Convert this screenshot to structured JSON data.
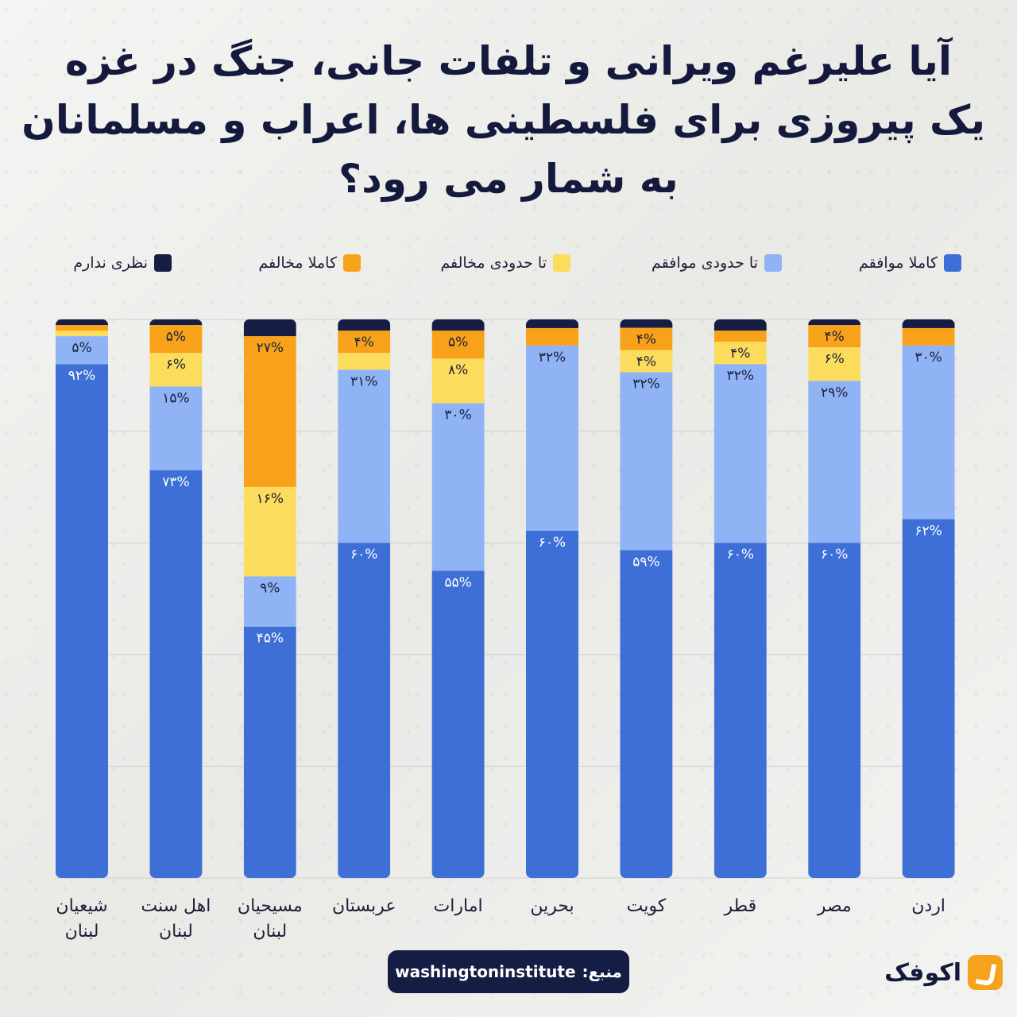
{
  "title_lines": [
    "آیا علیرغم ویرانی و تلفات جانی، جنگ در غزه",
    "یک پیروزی برای فلسطینی ها، اعراب و مسلمانان",
    "به شمار می رود؟"
  ],
  "source": {
    "label": "منبع:",
    "value": "washingtoninstitute"
  },
  "logo": {
    "text": "اکوفک",
    "icon": "akofak-logo-icon"
  },
  "colors": {
    "strongly_agree": "#3d6fd6",
    "somewhat_agree": "#8fb3f5",
    "somewhat_disagree": "#fcdc5c",
    "strongly_disagree": "#f7a21a",
    "no_opinion": "#161d45"
  },
  "chart_data": {
    "type": "bar",
    "stacked": true,
    "orientation": "vertical",
    "ylim": [
      0,
      100
    ],
    "grid": true,
    "legend_position": "top",
    "categories": [
      [
        "شیعیان",
        "لبنان"
      ],
      [
        "اهل سنت",
        "لبنان"
      ],
      [
        "مسیحیان",
        "لبنان"
      ],
      [
        "عربستان"
      ],
      [
        "امارات"
      ],
      [
        "بحرین"
      ],
      [
        "کویت"
      ],
      [
        "قطر"
      ],
      [
        "مصر"
      ],
      [
        "اردن"
      ]
    ],
    "series": [
      {
        "key": "strongly_agree",
        "name": "کاملا موافقم",
        "values": [
          92,
          73,
          45,
          60,
          55,
          60,
          59,
          60,
          60,
          62
        ],
        "labels": [
          "۹۲%",
          "۷۳%",
          "۴۵%",
          "۶۰%",
          "۵۵%",
          "۶۰%",
          "۵۹%",
          "۶۰%",
          "۶۰%",
          "۶۲%"
        ]
      },
      {
        "key": "somewhat_agree",
        "name": "تا حدودی موافقم",
        "values": [
          5,
          15,
          9,
          31,
          30,
          32,
          32,
          32,
          29,
          30
        ],
        "labels": [
          "۵%",
          "۱۵%",
          "۹%",
          "۳۱%",
          "۳۰%",
          "۳۲%",
          "۳۲%",
          "۳۲%",
          "۲۹%",
          "۳۰%"
        ]
      },
      {
        "key": "somewhat_disagree",
        "name": "تا حدودی مخالفم",
        "values": [
          1,
          6,
          16,
          3,
          8,
          0,
          4,
          4,
          6,
          0
        ],
        "labels": [
          "",
          "۶%",
          "۱۶%",
          "",
          "۸%",
          "",
          "۴%",
          "۴%",
          "۶%",
          ""
        ]
      },
      {
        "key": "strongly_disagree",
        "name": "کاملا مخالفم",
        "values": [
          1,
          5,
          27,
          4,
          5,
          3,
          4,
          2,
          4,
          3
        ],
        "labels": [
          "",
          "۵%",
          "۲۷%",
          "۴%",
          "۵%",
          "",
          "۴%",
          "",
          "۴%",
          ""
        ]
      },
      {
        "key": "no_opinion",
        "name": "نظری ندارم",
        "values": [
          1,
          1,
          3,
          2,
          2,
          1.5,
          1.5,
          2,
          1,
          1.5
        ],
        "labels": [
          "",
          "",
          "",
          "",
          "",
          "",
          "",
          "",
          "",
          ""
        ]
      }
    ]
  }
}
